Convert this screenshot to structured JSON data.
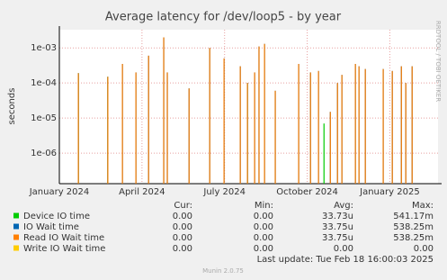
{
  "chart_data": {
    "type": "bar",
    "title": "Average latency for /dev/loop5 - by year",
    "y_label": "seconds",
    "side_text": "RRDTOOL / TOBI OETIKER",
    "log_y": true,
    "grid": true,
    "x": [
      0.69,
      1.76,
      2.29,
      2.78,
      3.24,
      3.79,
      3.92,
      4.71,
      5.46,
      5.98,
      6.57,
      6.83,
      7.09,
      7.25,
      7.45,
      7.84,
      8.69,
      9.12,
      9.41,
      9.61,
      9.84,
      10.1,
      10.26,
      10.75,
      10.88,
      11.11,
      11.76,
      12.09,
      12.42,
      12.58,
      12.81
    ],
    "xlim": [
      0,
      13.75
    ],
    "xticks": [
      {
        "value": 0,
        "label": "January 2024"
      },
      {
        "value": 3,
        "label": "April 2024"
      },
      {
        "value": 6,
        "label": "July 2024"
      },
      {
        "value": 9,
        "label": "October 2024"
      },
      {
        "value": 12,
        "label": "January 2025"
      }
    ],
    "ylim": [
      1.35e-07,
      0.0033
    ],
    "yticks": [
      {
        "value": 1e-06,
        "label": "1e-06"
      },
      {
        "value": 1e-05,
        "label": "1e-05"
      },
      {
        "value": 0.0001,
        "label": "1e-04"
      },
      {
        "value": 0.001,
        "label": "1e-03"
      }
    ],
    "series": [
      {
        "name": "Device IO time",
        "color": "#00cc00",
        "values": [
          0.00019,
          0.00015,
          null,
          null,
          null,
          null,
          null,
          null,
          null,
          null,
          null,
          0.0001,
          null,
          null,
          null,
          null,
          null,
          null,
          null,
          7e-06,
          null,
          null,
          null,
          null,
          null,
          null,
          null,
          null,
          null,
          null,
          null
        ]
      },
      {
        "name": "IO Wait time",
        "color": "#0066b3",
        "values": [
          0.00019,
          0.00015,
          0.00035,
          0.0002,
          0.0006,
          0.002,
          0.0002,
          7e-05,
          0.001,
          0.0005,
          0.0003,
          0.0001,
          0.0002,
          0.0011,
          0.0013,
          6e-05,
          0.00035,
          0.0002,
          0.00022,
          null,
          1.5e-05,
          0.0001,
          0.00017,
          0.00035,
          0.0003,
          0.00025,
          0.00025,
          0.00022,
          0.0003,
          0.0001,
          0.0003
        ]
      },
      {
        "name": "Read IO Wait time",
        "color": "#ff8000",
        "values": [
          0.00019,
          0.00015,
          0.00035,
          0.0002,
          0.0006,
          0.002,
          0.0002,
          7e-05,
          0.001,
          0.0005,
          0.0003,
          0.0001,
          0.0002,
          0.0011,
          0.0013,
          6e-05,
          0.00035,
          0.0002,
          0.00022,
          null,
          1.5e-05,
          0.0001,
          0.00017,
          0.00035,
          0.0003,
          0.00025,
          0.00025,
          0.00022,
          0.0003,
          0.0001,
          0.0003
        ]
      },
      {
        "name": "Write IO Wait time",
        "color": "#ffcc00",
        "values": [
          null,
          null,
          null,
          null,
          null,
          null,
          null,
          null,
          null,
          null,
          null,
          null,
          null,
          null,
          null,
          null,
          null,
          null,
          null,
          null,
          null,
          null,
          null,
          null,
          null,
          null,
          null,
          null,
          null,
          null,
          null
        ]
      }
    ],
    "legend_table": {
      "headers": [
        "Cur:",
        "Min:",
        "Avg:",
        "Max:"
      ],
      "rows": [
        [
          "0.00",
          "0.00",
          "33.73u",
          "541.17m"
        ],
        [
          "0.00",
          "0.00",
          "33.75u",
          "538.25m"
        ],
        [
          "0.00",
          "0.00",
          "33.75u",
          "538.25m"
        ],
        [
          "0.00",
          "0.00",
          "0.00",
          "0.00"
        ]
      ]
    },
    "last_update": "Last update: Tue Feb 18 16:00:03 2025",
    "footer": "Munin 2.0.75"
  }
}
